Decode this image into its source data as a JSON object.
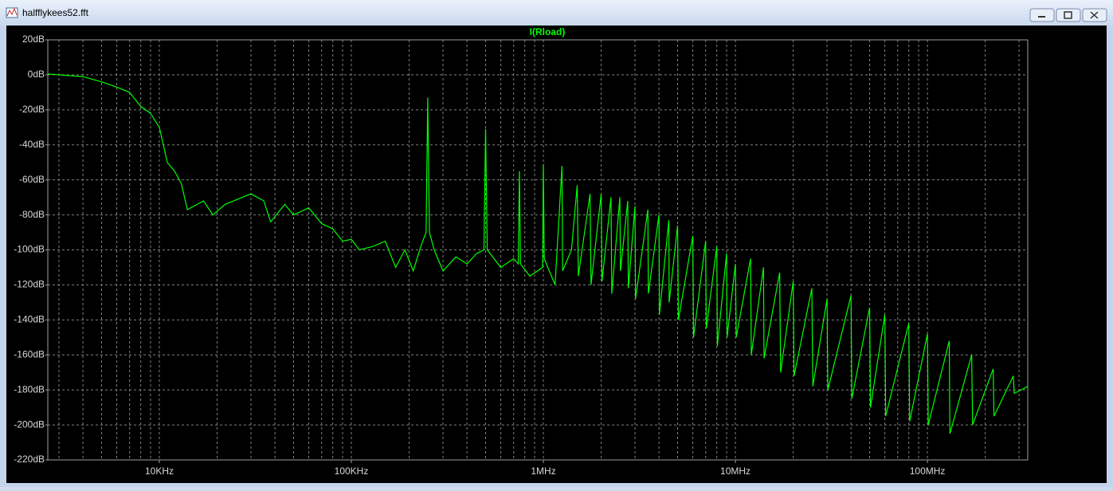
{
  "window": {
    "title": "halfflykees52.fft"
  },
  "chart_data": {
    "type": "line",
    "x": [
      2625,
      4000,
      5000,
      6000,
      7000,
      8000,
      9000,
      10000,
      11000,
      12000,
      13000,
      14000,
      17000,
      19000,
      22000,
      30000,
      35000,
      38000,
      45000,
      50000,
      60000,
      70000,
      80000,
      90000,
      100000,
      110000,
      130000,
      150000,
      170000,
      190000,
      210000,
      230000,
      245000,
      250000,
      255000,
      270000,
      300000,
      350000,
      400000,
      450000,
      490000,
      500000,
      510000,
      600000,
      700000,
      740000,
      750000,
      760000,
      850000,
      990000,
      1000000,
      1010000,
      1150000,
      1250000,
      1260000,
      1400000,
      1500000,
      1520000,
      1750000,
      1770000,
      2000000,
      2020000,
      2250000,
      2270000,
      2500000,
      2520000,
      2750000,
      2770000,
      3000000,
      3020000,
      3500000,
      3520000,
      4000000,
      4020000,
      4500000,
      4520000,
      5000000,
      5050000,
      6000000,
      6050000,
      7000000,
      7050000,
      8000000,
      8050000,
      9000000,
      9050000,
      10000000,
      10100000,
      12000000,
      12100000,
      14000000,
      14100000,
      17000000,
      17200000,
      20000000,
      20200000,
      25000000,
      25300000,
      30000000,
      30300000,
      40000000,
      40400000,
      50000000,
      50500000,
      60000000,
      60600000,
      80000000,
      80800000,
      100000000,
      101000000,
      130000000,
      131000000,
      170000000,
      172000000,
      220000000,
      222000000,
      280000000,
      283000000,
      333000000
    ],
    "series": [
      {
        "name": "I(Rload)",
        "color": "#00ff00",
        "values": [
          0.5,
          -1,
          -4,
          -7,
          -10,
          -18,
          -22,
          -30,
          -50,
          -55,
          -62,
          -77,
          -72,
          -80,
          -74,
          -68,
          -72,
          -84,
          -74,
          -80,
          -76,
          -85,
          -88,
          -95,
          -94,
          -100,
          -98,
          -95,
          -110,
          -100,
          -112,
          -98,
          -90,
          -13,
          -90,
          -100,
          -112,
          -104,
          -108,
          -102,
          -100,
          -31,
          -100,
          -110,
          -105,
          -108,
          -55,
          -108,
          -115,
          -110,
          -51,
          -105,
          -120,
          -52,
          -112,
          -100,
          -63,
          -115,
          -68,
          -120,
          -68,
          -118,
          -70,
          -125,
          -70,
          -112,
          -72,
          -122,
          -75,
          -128,
          -77,
          -125,
          -80,
          -137,
          -83,
          -130,
          -86,
          -140,
          -92,
          -150,
          -95,
          -145,
          -98,
          -155,
          -102,
          -150,
          -108,
          -150,
          -105,
          -160,
          -110,
          -162,
          -113,
          -170,
          -118,
          -172,
          -122,
          -178,
          -128,
          -180,
          -126,
          -185,
          -133,
          -190,
          -137,
          -195,
          -142,
          -198,
          -148,
          -200,
          -152,
          -205,
          -160,
          -200,
          -168,
          -195,
          -172,
          -182,
          -178
        ]
      }
    ],
    "xlog": true,
    "xlim": [
      2625,
      333000000
    ],
    "ylim": [
      -220,
      20
    ],
    "xticks": [
      {
        "value": 10000,
        "label": "10KHz"
      },
      {
        "value": 100000,
        "label": "100KHz"
      },
      {
        "value": 1000000,
        "label": "1MHz"
      },
      {
        "value": 10000000,
        "label": "10MHz"
      },
      {
        "value": 100000000,
        "label": "100MHz"
      }
    ],
    "xminorticks": [
      3000,
      4000,
      5000,
      6000,
      7000,
      8000,
      9000,
      20000,
      30000,
      40000,
      50000,
      60000,
      70000,
      80000,
      90000,
      200000,
      300000,
      400000,
      500000,
      600000,
      700000,
      800000,
      900000,
      2000000,
      3000000,
      4000000,
      5000000,
      6000000,
      7000000,
      8000000,
      9000000,
      20000000,
      30000000,
      40000000,
      50000000,
      60000000,
      70000000,
      80000000,
      90000000,
      200000000,
      300000000
    ],
    "yticks": [
      {
        "value": 20,
        "label": "20dB"
      },
      {
        "value": 0,
        "label": "0dB"
      },
      {
        "value": -20,
        "label": "-20dB"
      },
      {
        "value": -40,
        "label": "-40dB"
      },
      {
        "value": -60,
        "label": "-60dB"
      },
      {
        "value": -80,
        "label": "-80dB"
      },
      {
        "value": -100,
        "label": "-100dB"
      },
      {
        "value": -120,
        "label": "-120dB"
      },
      {
        "value": -140,
        "label": "-140dB"
      },
      {
        "value": -160,
        "label": "-160dB"
      },
      {
        "value": -180,
        "label": "-180dB"
      },
      {
        "value": -200,
        "label": "-200dB"
      },
      {
        "value": -220,
        "label": "-220dB"
      }
    ],
    "grid": true
  }
}
